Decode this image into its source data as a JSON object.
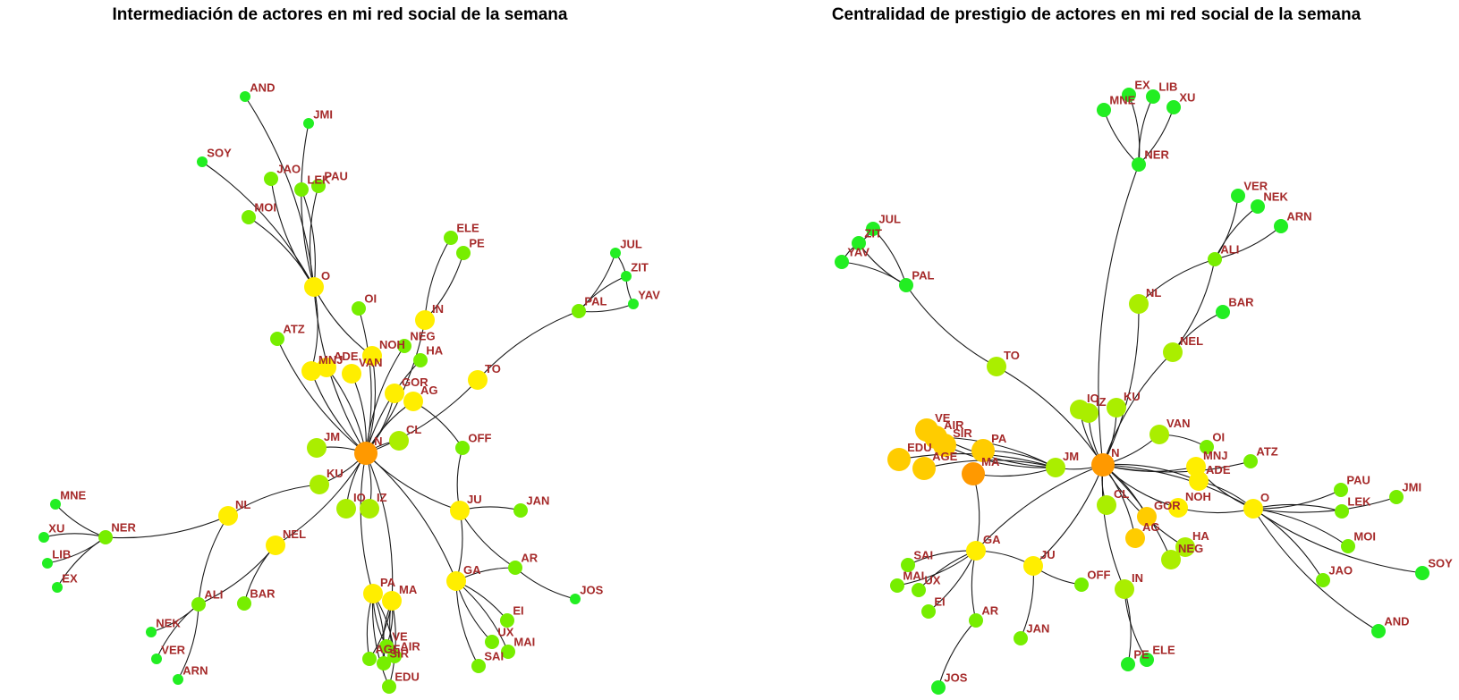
{
  "titles": {
    "left": "Intermediación de actores en mi red social de la semana",
    "right": "Centralidad de prestigio de actores en mi red social de la semana"
  },
  "colors": {
    "label": "#a52a2a",
    "edge": "#1a1a1a",
    "scale": {
      "green": "#22ee22",
      "lime": "#77ee00",
      "chartreuse": "#aaee00",
      "yellow": "#ffee00",
      "gold": "#ffcc00",
      "orange": "#ff9900"
    }
  },
  "graphs": [
    {
      "name": "left",
      "nodes": [
        {
          "label": "N",
          "color": "orange",
          "size": 3
        },
        {
          "label": "O",
          "color": "yellow",
          "size": 2
        },
        {
          "label": "AND",
          "color": "green",
          "size": 0
        },
        {
          "label": "JMI",
          "color": "green",
          "size": 0
        },
        {
          "label": "SOY",
          "color": "green",
          "size": 0
        },
        {
          "label": "JAO",
          "color": "lime",
          "size": 1
        },
        {
          "label": "LEK",
          "color": "lime",
          "size": 1
        },
        {
          "label": "PAU",
          "color": "lime",
          "size": 1
        },
        {
          "label": "MOI",
          "color": "lime",
          "size": 1
        },
        {
          "label": "OI",
          "color": "lime",
          "size": 1
        },
        {
          "label": "ELE",
          "color": "lime",
          "size": 1
        },
        {
          "label": "PE",
          "color": "lime",
          "size": 1
        },
        {
          "label": "IN",
          "color": "yellow",
          "size": 2
        },
        {
          "label": "JUL",
          "color": "green",
          "size": 0
        },
        {
          "label": "ZIT",
          "color": "green",
          "size": 0
        },
        {
          "label": "YAV",
          "color": "green",
          "size": 0
        },
        {
          "label": "PAL",
          "color": "lime",
          "size": 1
        },
        {
          "label": "ATZ",
          "color": "lime",
          "size": 1
        },
        {
          "label": "ADE",
          "color": "yellow",
          "size": 2
        },
        {
          "label": "MNJ",
          "color": "yellow",
          "size": 2
        },
        {
          "label": "NOH",
          "color": "yellow",
          "size": 2
        },
        {
          "label": "NEG",
          "color": "lime",
          "size": 1
        },
        {
          "label": "VAN",
          "color": "yellow",
          "size": 2
        },
        {
          "label": "HA",
          "color": "lime",
          "size": 1
        },
        {
          "label": "GOR",
          "color": "yellow",
          "size": 2
        },
        {
          "label": "AG",
          "color": "yellow",
          "size": 2
        },
        {
          "label": "TO",
          "color": "yellow",
          "size": 2
        },
        {
          "label": "CL",
          "color": "chartreuse",
          "size": 2
        },
        {
          "label": "JM",
          "color": "chartreuse",
          "size": 2
        },
        {
          "label": "OFF",
          "color": "lime",
          "size": 1
        },
        {
          "label": "KU",
          "color": "chartreuse",
          "size": 2
        },
        {
          "label": "IO",
          "color": "chartreuse",
          "size": 2
        },
        {
          "label": "IZ",
          "color": "chartreuse",
          "size": 2
        },
        {
          "label": "JU",
          "color": "yellow",
          "size": 2
        },
        {
          "label": "JAN",
          "color": "lime",
          "size": 1
        },
        {
          "label": "MNE",
          "color": "green",
          "size": 0
        },
        {
          "label": "XU",
          "color": "green",
          "size": 0
        },
        {
          "label": "NER",
          "color": "lime",
          "size": 1
        },
        {
          "label": "LIB",
          "color": "green",
          "size": 0
        },
        {
          "label": "EX",
          "color": "green",
          "size": 0
        },
        {
          "label": "NL",
          "color": "yellow",
          "size": 2
        },
        {
          "label": "NEL",
          "color": "yellow",
          "size": 2
        },
        {
          "label": "AR",
          "color": "lime",
          "size": 1
        },
        {
          "label": "JOS",
          "color": "green",
          "size": 0
        },
        {
          "label": "ALI",
          "color": "lime",
          "size": 1
        },
        {
          "label": "BAR",
          "color": "lime",
          "size": 1
        },
        {
          "label": "PA",
          "color": "yellow",
          "size": 2
        },
        {
          "label": "MA",
          "color": "yellow",
          "size": 2
        },
        {
          "label": "GA",
          "color": "yellow",
          "size": 2
        },
        {
          "label": "EI",
          "color": "lime",
          "size": 1
        },
        {
          "label": "UX",
          "color": "lime",
          "size": 1
        },
        {
          "label": "MAI",
          "color": "lime",
          "size": 1
        },
        {
          "label": "SAI",
          "color": "lime",
          "size": 1
        },
        {
          "label": "NEK",
          "color": "green",
          "size": 0
        },
        {
          "label": "VER",
          "color": "green",
          "size": 0
        },
        {
          "label": "ARN",
          "color": "green",
          "size": 0
        },
        {
          "label": "VE",
          "color": "lime",
          "size": 1
        },
        {
          "label": "AIR",
          "color": "lime",
          "size": 1
        },
        {
          "label": "AGE",
          "color": "lime",
          "size": 1
        },
        {
          "label": "SIR",
          "color": "lime",
          "size": 1
        },
        {
          "label": "EDU",
          "color": "lime",
          "size": 1
        }
      ]
    },
    {
      "name": "right",
      "nodes": [
        {
          "label": "N",
          "color": "orange",
          "size": 3
        },
        {
          "label": "MNE",
          "color": "green",
          "size": 1
        },
        {
          "label": "EX",
          "color": "green",
          "size": 1
        },
        {
          "label": "LIB",
          "color": "green",
          "size": 1
        },
        {
          "label": "XU",
          "color": "green",
          "size": 1
        },
        {
          "label": "NER",
          "color": "green",
          "size": 1
        },
        {
          "label": "VER",
          "color": "green",
          "size": 1
        },
        {
          "label": "NEK",
          "color": "green",
          "size": 1
        },
        {
          "label": "ARN",
          "color": "green",
          "size": 1
        },
        {
          "label": "ALI",
          "color": "lime",
          "size": 1
        },
        {
          "label": "JUL",
          "color": "green",
          "size": 1
        },
        {
          "label": "ZIT",
          "color": "green",
          "size": 1
        },
        {
          "label": "YAV",
          "color": "green",
          "size": 1
        },
        {
          "label": "PAL",
          "color": "green",
          "size": 1
        },
        {
          "label": "BAR",
          "color": "green",
          "size": 1
        },
        {
          "label": "NL",
          "color": "chartreuse",
          "size": 2
        },
        {
          "label": "NEL",
          "color": "chartreuse",
          "size": 2
        },
        {
          "label": "TO",
          "color": "chartreuse",
          "size": 2
        },
        {
          "label": "IZ",
          "color": "chartreuse",
          "size": 2
        },
        {
          "label": "KU",
          "color": "chartreuse",
          "size": 2
        },
        {
          "label": "IO",
          "color": "chartreuse",
          "size": 2
        },
        {
          "label": "VAN",
          "color": "chartreuse",
          "size": 2
        },
        {
          "label": "OI",
          "color": "lime",
          "size": 1
        },
        {
          "label": "VE",
          "color": "gold",
          "size": 3
        },
        {
          "label": "AIR",
          "color": "gold",
          "size": 3
        },
        {
          "label": "SIR",
          "color": "gold",
          "size": 3
        },
        {
          "label": "PA",
          "color": "gold",
          "size": 3
        },
        {
          "label": "EDU",
          "color": "gold",
          "size": 3
        },
        {
          "label": "AGE",
          "color": "gold",
          "size": 3
        },
        {
          "label": "MA",
          "color": "orange",
          "size": 3
        },
        {
          "label": "JM",
          "color": "chartreuse",
          "size": 2
        },
        {
          "label": "MNJ",
          "color": "yellow",
          "size": 2
        },
        {
          "label": "ADE",
          "color": "yellow",
          "size": 2
        },
        {
          "label": "ATZ",
          "color": "lime",
          "size": 1
        },
        {
          "label": "PAU",
          "color": "lime",
          "size": 1
        },
        {
          "label": "JMI",
          "color": "lime",
          "size": 1
        },
        {
          "label": "LEK",
          "color": "lime",
          "size": 1
        },
        {
          "label": "O",
          "color": "yellow",
          "size": 2
        },
        {
          "label": "MOI",
          "color": "lime",
          "size": 1
        },
        {
          "label": "SOY",
          "color": "green",
          "size": 1
        },
        {
          "label": "JAO",
          "color": "lime",
          "size": 1
        },
        {
          "label": "AND",
          "color": "green",
          "size": 1
        },
        {
          "label": "CL",
          "color": "chartreuse",
          "size": 2
        },
        {
          "label": "GOR",
          "color": "gold",
          "size": 2
        },
        {
          "label": "NOH",
          "color": "yellow",
          "size": 2
        },
        {
          "label": "AG",
          "color": "gold",
          "size": 2
        },
        {
          "label": "HA",
          "color": "chartreuse",
          "size": 2
        },
        {
          "label": "NEG",
          "color": "chartreuse",
          "size": 2
        },
        {
          "label": "SAI",
          "color": "lime",
          "size": 1
        },
        {
          "label": "GA",
          "color": "yellow",
          "size": 2
        },
        {
          "label": "MAI",
          "color": "lime",
          "size": 1
        },
        {
          "label": "UX",
          "color": "lime",
          "size": 1
        },
        {
          "label": "EI",
          "color": "lime",
          "size": 1
        },
        {
          "label": "JU",
          "color": "yellow",
          "size": 2
        },
        {
          "label": "OFF",
          "color": "lime",
          "size": 1
        },
        {
          "label": "IN",
          "color": "chartreuse",
          "size": 2
        },
        {
          "label": "AR",
          "color": "lime",
          "size": 1
        },
        {
          "label": "JAN",
          "color": "lime",
          "size": 1
        },
        {
          "label": "PE",
          "color": "green",
          "size": 1
        },
        {
          "label": "ELE",
          "color": "green",
          "size": 1
        },
        {
          "label": "JOS",
          "color": "green",
          "size": 1
        }
      ]
    }
  ]
}
